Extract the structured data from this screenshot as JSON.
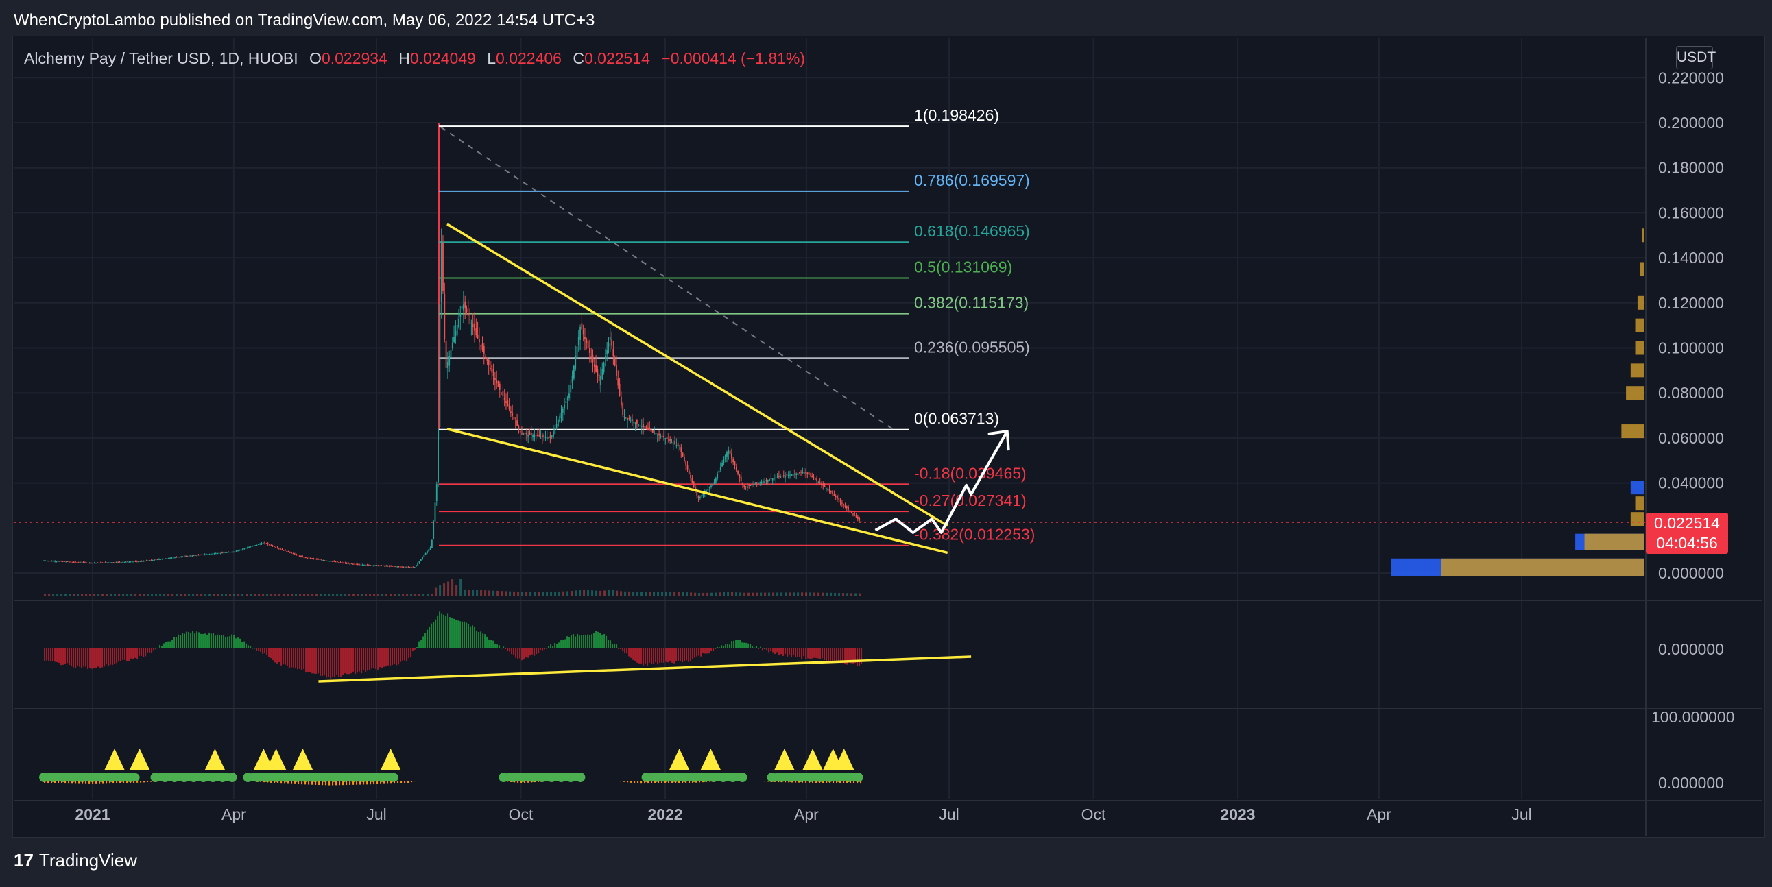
{
  "header": {
    "publisher_line": "WhenCryptoLambo published on TradingView.com, May 06, 2022 14:54 UTC+3"
  },
  "legend": {
    "symbol": "Alchemy Pay / Tether USD, 1D, HUOBI",
    "o_label": "O",
    "o_value": "0.022934",
    "h_label": "H",
    "h_value": "0.024049",
    "l_label": "L",
    "l_value": "0.022406",
    "c_label": "C",
    "c_value": "0.022514",
    "change": "−0.000414 (−1.81%)"
  },
  "currency_badge": "USDT",
  "price_badge": {
    "price": "0.022514",
    "countdown": "04:04:56"
  },
  "footer": {
    "logo_glyph": "17",
    "brand": "TradingView"
  },
  "colors": {
    "background": "#131722",
    "up": "#26a69a",
    "down": "#ef5350",
    "trendline": "#ffeb3b",
    "projection": "#ffffff",
    "grid": "#1f2330"
  },
  "chart_data": [
    {
      "type": "line",
      "title": "Alchemy Pay / Tether USD, 1D, HUOBI",
      "y_axis_ticks": [
        "0.220000",
        "0.200000",
        "0.180000",
        "0.160000",
        "0.140000",
        "0.120000",
        "0.100000",
        "0.080000",
        "0.060000",
        "0.040000",
        "0.000000"
      ],
      "ylim": [
        0,
        0.22
      ],
      "x_axis_ticks": [
        "2021",
        "Apr",
        "Jul",
        "Oct",
        "2022",
        "Apr",
        "Jul",
        "Oct",
        "2023",
        "Apr",
        "Jul"
      ],
      "price_path": [
        [
          "2020-12-01",
          0.0055
        ],
        [
          "2021-01-01",
          0.0045
        ],
        [
          "2021-02-01",
          0.0052
        ],
        [
          "2021-03-01",
          0.0075
        ],
        [
          "2021-04-01",
          0.0095
        ],
        [
          "2021-04-20",
          0.0135
        ],
        [
          "2021-05-15",
          0.007
        ],
        [
          "2021-06-15",
          0.004
        ],
        [
          "2021-07-25",
          0.0025
        ],
        [
          "2021-08-05",
          0.012
        ],
        [
          "2021-08-09",
          0.045
        ],
        [
          "2021-08-11",
          0.155
        ],
        [
          "2021-08-14",
          0.09
        ],
        [
          "2021-08-25",
          0.12
        ],
        [
          "2021-09-15",
          0.085
        ],
        [
          "2021-10-01",
          0.062
        ],
        [
          "2021-10-20",
          0.06
        ],
        [
          "2021-11-01",
          0.08
        ],
        [
          "2021-11-08",
          0.11
        ],
        [
          "2021-11-20",
          0.085
        ],
        [
          "2021-11-27",
          0.105
        ],
        [
          "2021-12-05",
          0.07
        ],
        [
          "2021-12-25",
          0.062
        ],
        [
          "2022-01-01",
          0.06
        ],
        [
          "2022-01-10",
          0.056
        ],
        [
          "2022-01-22",
          0.033
        ],
        [
          "2022-02-01",
          0.04
        ],
        [
          "2022-02-10",
          0.055
        ],
        [
          "2022-02-20",
          0.038
        ],
        [
          "2022-03-10",
          0.042
        ],
        [
          "2022-03-31",
          0.045
        ],
        [
          "2022-04-15",
          0.037
        ],
        [
          "2022-04-25",
          0.03
        ],
        [
          "2022-05-06",
          0.0225
        ]
      ],
      "fibonacci_levels": [
        {
          "ratio": "1",
          "value": 0.198426,
          "label": "1(0.198426)",
          "color": "#ffffff"
        },
        {
          "ratio": "0.786",
          "value": 0.169597,
          "label": "0.786(0.169597)",
          "color": "#64b5f6"
        },
        {
          "ratio": "0.618",
          "value": 0.146965,
          "label": "0.618(0.146965)",
          "color": "#26a69a"
        },
        {
          "ratio": "0.5",
          "value": 0.131069,
          "label": "0.5(0.131069)",
          "color": "#4caf50"
        },
        {
          "ratio": "0.382",
          "value": 0.115173,
          "label": "0.382(0.115173)",
          "color": "#81c784"
        },
        {
          "ratio": "0.236",
          "value": 0.095505,
          "label": "0.236(0.095505)",
          "color": "#b2b5be"
        },
        {
          "ratio": "0",
          "value": 0.063713,
          "label": "0(0.063713)",
          "color": "#ffffff"
        },
        {
          "ratio": "-0.18",
          "value": 0.039465,
          "label": "-0.18(0.039465)",
          "color": "#f23645"
        },
        {
          "ratio": "-0.27",
          "value": 0.027341,
          "label": "-0.27(0.027341)",
          "color": "#f23645"
        },
        {
          "ratio": "-0.382",
          "value": 0.012253,
          "label": "-0.382(0.012253)",
          "color": "#f23645"
        }
      ],
      "wedge_upper": [
        [
          "2021-08-15",
          0.155
        ],
        [
          "2022-06-30",
          0.021
        ]
      ],
      "wedge_lower": [
        [
          "2021-08-15",
          0.064
        ],
        [
          "2022-06-30",
          0.009
        ]
      ],
      "fib_diagonal": [
        [
          "2021-08-11",
          0.198
        ],
        [
          "2022-05-26",
          0.064
        ]
      ],
      "projection_path": [
        [
          "2022-05-15",
          0.019
        ],
        [
          "2022-05-28",
          0.024
        ],
        [
          "2022-06-08",
          0.018
        ],
        [
          "2022-06-20",
          0.024
        ],
        [
          "2022-06-26",
          0.018
        ],
        [
          "2022-07-12",
          0.039
        ],
        [
          "2022-07-15",
          0.035
        ],
        [
          "2022-08-07",
          0.063
        ]
      ],
      "current_price": 0.022514,
      "volume_profile": [
        {
          "price": 0.0025,
          "length": 0.55,
          "color": "#2962ff"
        },
        {
          "price": 0.0025,
          "length": 0.44,
          "color": "#c4942b"
        },
        {
          "price": 0.0138,
          "length": 0.15,
          "color": "#2962ff"
        },
        {
          "price": 0.0138,
          "length": 0.13,
          "color": "#c4942b"
        },
        {
          "price": 0.024,
          "length": 0.03,
          "color": "#c4942b"
        },
        {
          "price": 0.031,
          "length": 0.02,
          "color": "#c4942b"
        },
        {
          "price": 0.038,
          "length": 0.03,
          "color": "#2962ff"
        },
        {
          "price": 0.063,
          "length": 0.05,
          "color": "#c4942b"
        },
        {
          "price": 0.08,
          "length": 0.04,
          "color": "#c4942b"
        },
        {
          "price": 0.09,
          "length": 0.03,
          "color": "#c4942b"
        },
        {
          "price": 0.1,
          "length": 0.02,
          "color": "#c4942b"
        },
        {
          "price": 0.11,
          "length": 0.02,
          "color": "#c4942b"
        },
        {
          "price": 0.12,
          "length": 0.015,
          "color": "#c4942b"
        },
        {
          "price": 0.135,
          "length": 0.01,
          "color": "#c4942b"
        },
        {
          "price": 0.15,
          "length": 0.006,
          "color": "#c4942b"
        }
      ]
    },
    {
      "type": "bar",
      "y_axis_ticks": [
        "0.000000"
      ],
      "ylim": [
        -1,
        1
      ],
      "series": [
        {
          "x": "2020-12-01",
          "value": -0.3
        },
        {
          "x": "2021-01-01",
          "value": -0.5
        },
        {
          "x": "2021-02-01",
          "value": -0.2
        },
        {
          "x": "2021-03-01",
          "value": 0.4
        },
        {
          "x": "2021-04-01",
          "value": 0.3
        },
        {
          "x": "2021-05-01",
          "value": -0.4
        },
        {
          "x": "2021-06-01",
          "value": -0.7
        },
        {
          "x": "2021-07-01",
          "value": -0.5
        },
        {
          "x": "2021-07-20",
          "value": -0.3
        },
        {
          "x": "2021-08-10",
          "value": 0.9
        },
        {
          "x": "2021-09-01",
          "value": 0.5
        },
        {
          "x": "2021-10-01",
          "value": -0.3
        },
        {
          "x": "2021-11-01",
          "value": 0.3
        },
        {
          "x": "2021-11-20",
          "value": 0.4
        },
        {
          "x": "2021-12-15",
          "value": -0.4
        },
        {
          "x": "2022-01-15",
          "value": -0.3
        },
        {
          "x": "2022-02-15",
          "value": 0.2
        },
        {
          "x": "2022-03-15",
          "value": -0.15
        },
        {
          "x": "2022-05-06",
          "value": -0.4
        }
      ],
      "trendline": [
        [
          "2021-05-25",
          -0.8
        ],
        [
          "2022-07-15",
          -0.2
        ]
      ]
    },
    {
      "type": "scatter",
      "y_axis_ticks": [
        "100.000000",
        "0.000000"
      ],
      "ylim": [
        0,
        100
      ],
      "signals": [
        "2021-01-15",
        "2021-01-31",
        "2021-03-20",
        "2021-04-20",
        "2021-04-28",
        "2021-05-15",
        "2021-07-10",
        "2022-01-10",
        "2022-01-30",
        "2022-03-18",
        "2022-04-05",
        "2022-04-18",
        "2022-04-25"
      ],
      "bands": [
        [
          "2020-12-01",
          "2021-01-31"
        ],
        [
          "2021-02-10",
          "2021-03-31"
        ],
        [
          "2021-04-10",
          "2021-07-15"
        ],
        [
          "2021-09-20",
          "2021-11-10"
        ],
        [
          "2021-12-20",
          "2022-02-20"
        ],
        [
          "2022-03-10",
          "2022-05-06"
        ]
      ]
    }
  ]
}
